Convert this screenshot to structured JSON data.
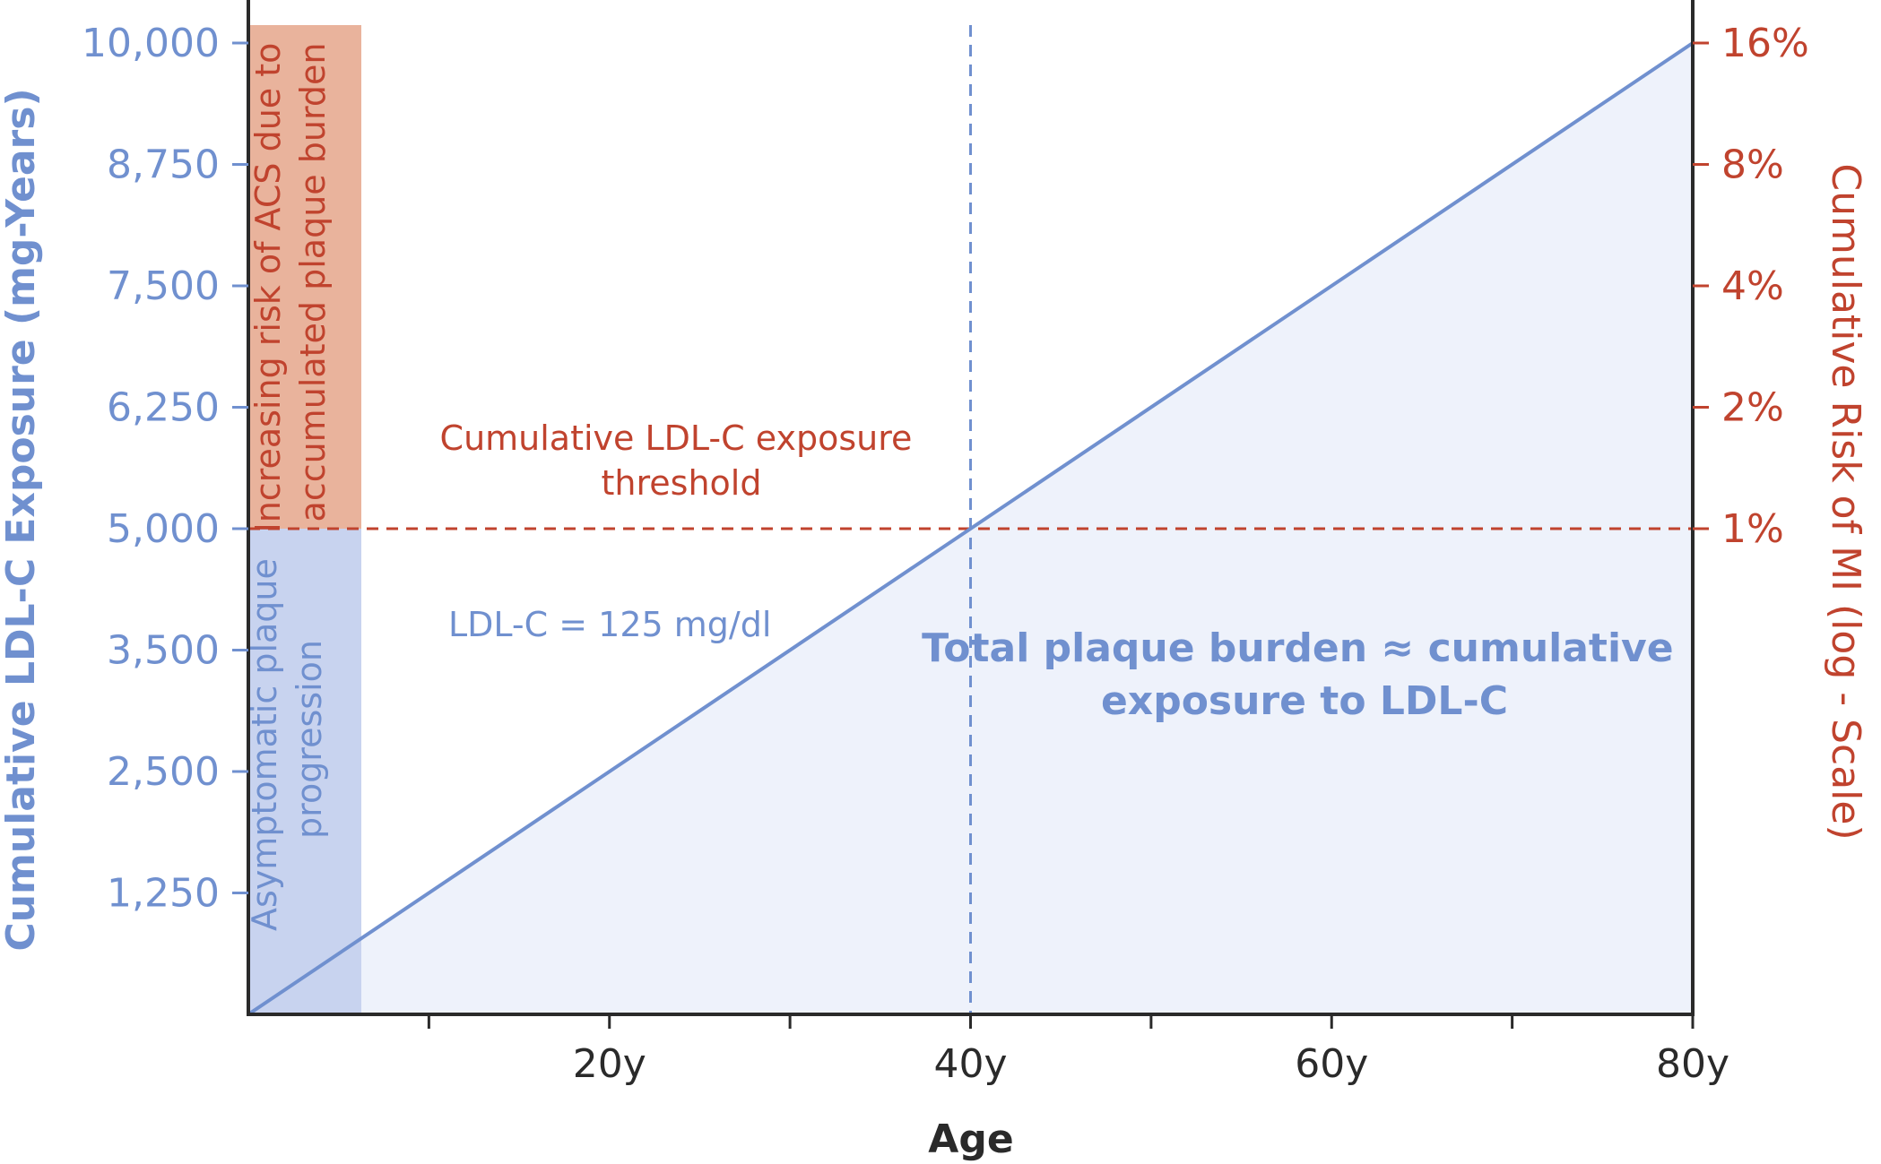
{
  "colors": {
    "blue": "#7090cf",
    "red": "#c0432e",
    "fill_area": "#eef2fb",
    "asymptomatic_band": "#c8d3ef",
    "risk_band": "#e9b39c",
    "axis": "#2a2a2a"
  },
  "chart_data": {
    "type": "area",
    "x_axis": {
      "label": "Age",
      "range": [
        0,
        80
      ],
      "major_ticks": [
        20,
        40,
        60,
        80
      ],
      "minor_ticks": [
        10,
        30,
        50,
        70
      ],
      "tick_labels": [
        "20y",
        "40y",
        "60y",
        "80y"
      ]
    },
    "y_left": {
      "label": "Cumulative LDL-C Exposure (mg-Years)",
      "ticks": [
        "1,250",
        "2,500",
        "3,500",
        "5,000",
        "6,250",
        "7,500",
        "8,750",
        "10,000"
      ]
    },
    "y_right": {
      "label": "Cumulative Risk of MI (log - Scale)",
      "scale": "log",
      "ticks": [
        "1%",
        "2%",
        "4%",
        "8%",
        "16%"
      ]
    },
    "series": [
      {
        "name": "LDL-C = 125 mg/dl",
        "x": [
          0,
          80
        ],
        "y": [
          0,
          10000
        ],
        "filled": true
      }
    ],
    "threshold": {
      "y": 5000,
      "x_at_threshold": 40,
      "right_value": "1%",
      "label": "Cumulative LDL-C exposure threshold"
    },
    "bands": {
      "asymptomatic": "Asymptomatic plaque progression",
      "increasing_risk": "Increasing risk of ACS due to accumulated plaque burden"
    },
    "annotation": "Total plaque burden ≈ cumulative exposure to LDL-C",
    "grid": false,
    "legend": "none"
  }
}
